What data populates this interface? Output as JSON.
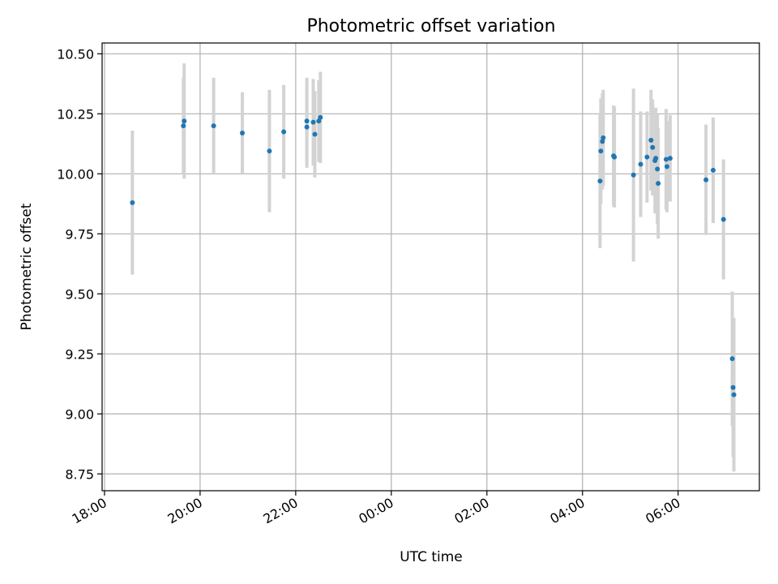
{
  "chart_data": {
    "type": "scatter",
    "title": "Photometric offset variation",
    "xlabel": "UTC time",
    "ylabel": "Photometric offset",
    "grid": true,
    "xlim": [
      "17:57",
      "07:42"
    ],
    "ylim": [
      8.68,
      10.545
    ],
    "x_ticks": [
      "18:00",
      "20:00",
      "22:00",
      "00:00",
      "02:00",
      "04:00",
      "06:00"
    ],
    "y_ticks": [
      8.75,
      9.0,
      9.25,
      9.5,
      9.75,
      10.0,
      10.25,
      10.5
    ],
    "y_tick_labels": [
      "8.75",
      "9.00",
      "9.25",
      "9.50",
      "9.75",
      "10.00",
      "10.25",
      "10.50"
    ],
    "colors": {
      "point": "#1f77b4",
      "error_bar": "#d3d3d3",
      "grid": "#b0b0b0"
    },
    "points": [
      {
        "x": "18:35",
        "y": 9.88,
        "err": 0.3
      },
      {
        "x": "19:39",
        "y": 10.2,
        "err": 0.2
      },
      {
        "x": "19:40",
        "y": 10.22,
        "err": 0.24
      },
      {
        "x": "20:17",
        "y": 10.2,
        "err": 0.2
      },
      {
        "x": "20:53",
        "y": 10.17,
        "err": 0.17
      },
      {
        "x": "21:27",
        "y": 10.095,
        "err": 0.255
      },
      {
        "x": "21:45",
        "y": 10.175,
        "err": 0.195
      },
      {
        "x": "22:14",
        "y": 10.22,
        "err": 0.18
      },
      {
        "x": "22:14",
        "y": 10.195,
        "err": 0.17
      },
      {
        "x": "22:22",
        "y": 10.215,
        "err": 0.18
      },
      {
        "x": "22:24",
        "y": 10.165,
        "err": 0.18
      },
      {
        "x": "22:29",
        "y": 10.22,
        "err": 0.17
      },
      {
        "x": "22:31",
        "y": 10.235,
        "err": 0.19
      },
      {
        "x": "04:22",
        "y": 9.97,
        "err": 0.28
      },
      {
        "x": "04:23",
        "y": 10.095,
        "err": 0.22
      },
      {
        "x": "04:25",
        "y": 10.135,
        "err": 0.2
      },
      {
        "x": "04:26",
        "y": 10.15,
        "err": 0.2
      },
      {
        "x": "04:39",
        "y": 10.075,
        "err": 0.21
      },
      {
        "x": "04:40",
        "y": 10.07,
        "err": 0.21
      },
      {
        "x": "05:04",
        "y": 9.995,
        "err": 0.36
      },
      {
        "x": "05:13",
        "y": 10.04,
        "err": 0.22
      },
      {
        "x": "05:21",
        "y": 10.07,
        "err": 0.19
      },
      {
        "x": "05:26",
        "y": 10.14,
        "err": 0.21
      },
      {
        "x": "05:28",
        "y": 10.11,
        "err": 0.2
      },
      {
        "x": "05:31",
        "y": 10.055,
        "err": 0.22
      },
      {
        "x": "05:32",
        "y": 10.065,
        "err": 0.21
      },
      {
        "x": "05:34",
        "y": 10.02,
        "err": 0.23
      },
      {
        "x": "05:35",
        "y": 9.96,
        "err": 0.23
      },
      {
        "x": "05:45",
        "y": 10.06,
        "err": 0.21
      },
      {
        "x": "05:46",
        "y": 10.03,
        "err": 0.19
      },
      {
        "x": "05:50",
        "y": 10.065,
        "err": 0.18
      },
      {
        "x": "06:35",
        "y": 9.975,
        "err": 0.23
      },
      {
        "x": "06:44",
        "y": 10.015,
        "err": 0.22
      },
      {
        "x": "06:57",
        "y": 9.81,
        "err": 0.25
      },
      {
        "x": "07:08",
        "y": 9.23,
        "err": 0.28
      },
      {
        "x": "07:09",
        "y": 9.11,
        "err": 0.29
      },
      {
        "x": "07:10",
        "y": 9.08,
        "err": 0.32
      }
    ]
  }
}
